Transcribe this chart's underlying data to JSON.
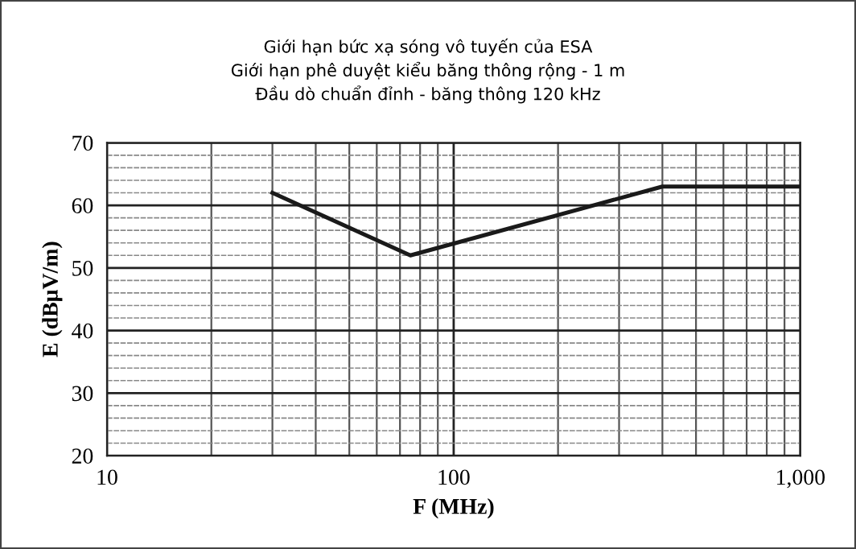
{
  "chart_data": {
    "type": "line",
    "title": "Giới hạn bức xạ sóng vô tuyến của ESA\nGiới hạn phê duyệt kiểu băng thông rộng - 1 m\nĐầu dò chuẩn đỉnh - băng thông 120 kHz",
    "xlabel": "F (MHz)",
    "ylabel": "E (dBμV/m)",
    "log": "x",
    "grid": true,
    "marker": "none",
    "line_style": "solid",
    "x": [
      30,
      75,
      400,
      1000
    ],
    "series": [
      {
        "color": "#1a1a1a",
        "values": [
          62,
          52,
          63,
          63
        ]
      }
    ],
    "xlim": [
      10,
      1000
    ],
    "ylim": [
      20,
      70
    ],
    "xticks": [
      10,
      {
        "value": 20,
        "label": null
      },
      {
        "value": 30,
        "label": null
      },
      {
        "value": 40,
        "label": null
      },
      {
        "value": 50,
        "label": null
      },
      {
        "value": 60,
        "label": null
      },
      {
        "value": 70,
        "label": null
      },
      {
        "value": 80,
        "label": null
      },
      {
        "value": 90,
        "label": null
      },
      100,
      {
        "value": 200,
        "label": null
      },
      {
        "value": 300,
        "label": null
      },
      {
        "value": 400,
        "label": null
      },
      {
        "value": 500,
        "label": null
      },
      {
        "value": 600,
        "label": null
      },
      {
        "value": 700,
        "label": null
      },
      {
        "value": 800,
        "label": null
      },
      {
        "value": 900,
        "label": null
      },
      {
        "value": 1000,
        "label": "1,000"
      }
    ],
    "yticks": [
      20,
      {
        "value": 22,
        "label": null
      },
      {
        "value": 24,
        "label": null
      },
      {
        "value": 26,
        "label": null
      },
      {
        "value": 28,
        "label": null
      },
      30,
      {
        "value": 32,
        "label": null
      },
      {
        "value": 34,
        "label": null
      },
      {
        "value": 36,
        "label": null
      },
      {
        "value": 38,
        "label": null
      },
      40,
      {
        "value": 42,
        "label": null
      },
      {
        "value": 44,
        "label": null
      },
      {
        "value": 46,
        "label": null
      },
      {
        "value": 48,
        "label": null
      },
      50,
      {
        "value": 52,
        "label": null
      },
      {
        "value": 54,
        "label": null
      },
      {
        "value": 56,
        "label": null
      },
      {
        "value": 58,
        "label": null
      },
      60,
      {
        "value": 62,
        "label": null
      },
      {
        "value": 64,
        "label": null
      },
      {
        "value": 66,
        "label": null
      },
      {
        "value": 68,
        "label": null
      },
      70
    ]
  }
}
